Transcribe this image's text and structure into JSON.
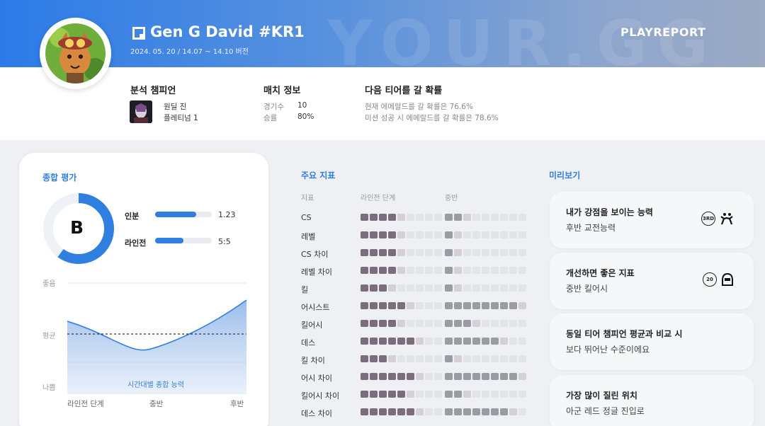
{
  "header": {
    "watermark": "YOUR.GG",
    "player_name": "Gen G David #KR1",
    "date_range": "2024. 05. 20 / 14.07 ~ 14.10 버전",
    "brand": "PLAYREPORT"
  },
  "analysis_champion": {
    "title": "분석 챔피언",
    "champion": "원딜 진",
    "tier": "플레티넘 1"
  },
  "match_info": {
    "title": "매치 정보",
    "games_label": "경기수",
    "games_value": "10",
    "winrate_label": "승률",
    "winrate_value": "80%"
  },
  "next_tier": {
    "title": "다음 티어를 갈 확률",
    "line1": "현재 에메랄드를 갈 확률은 76.6%",
    "line2": "미션 성공 시 에메랄드를 갈 확률은 78.6%"
  },
  "overall": {
    "title": "종합 평가",
    "grade": "B",
    "grade_ring_fraction": 0.6,
    "stats": [
      {
        "label": "인분",
        "value": "1.23",
        "fraction": 0.72
      },
      {
        "label": "라인전",
        "value": "5:5",
        "fraction": 0.5
      }
    ],
    "y_labels": [
      "좋음",
      "평균",
      "나쁨"
    ],
    "x_labels": [
      "라인전 단계",
      "중반",
      "후반"
    ],
    "curve_caption": "시간대별 종합 능력"
  },
  "metrics": {
    "title": "주요 지표",
    "col_metric": "지표",
    "col_lane": "라인전 단계",
    "col_mid": "중반",
    "rows": [
      {
        "name": "CS",
        "lane": 4,
        "mid": 2
      },
      {
        "name": "레벨",
        "lane": 4,
        "mid": 1
      },
      {
        "name": "CS 차이",
        "lane": 4,
        "mid": 1
      },
      {
        "name": "레벨 차이",
        "lane": 4,
        "mid": 1
      },
      {
        "name": "킬",
        "lane": 3,
        "mid": 1
      },
      {
        "name": "어시스트",
        "lane": 5,
        "mid": 8
      },
      {
        "name": "킬어시",
        "lane": 4,
        "mid": 3
      },
      {
        "name": "데스",
        "lane": 6,
        "mid": 6
      },
      {
        "name": "킬 차이",
        "lane": 3,
        "mid": 1
      },
      {
        "name": "어시 차이",
        "lane": 6,
        "mid": 8
      },
      {
        "name": "킬어시 차이",
        "lane": 5,
        "mid": 2
      },
      {
        "name": "데스 차이",
        "lane": 6,
        "mid": 7
      }
    ]
  },
  "preview": {
    "title": "미리보기",
    "cards": [
      {
        "title": "내가 강점을 보이는 능력",
        "sub": "후반 교전능력",
        "badge": "3RD"
      },
      {
        "title": "개선하면 좋은 지표",
        "sub": "중반 킬어시",
        "badge": "20"
      },
      {
        "title": "동일 티어 챔피언 평균과 비교 시",
        "sub": "보다 뛰어난 수준이에요",
        "badge": ""
      },
      {
        "title": "가장 많이 질린 위치",
        "sub": "아군 레드 정글 진입로",
        "badge": ""
      }
    ]
  },
  "colors": {
    "accent": "#2f7fe0",
    "square_lane": "#7c6d7c",
    "square_mid": "#9a9ca3"
  }
}
